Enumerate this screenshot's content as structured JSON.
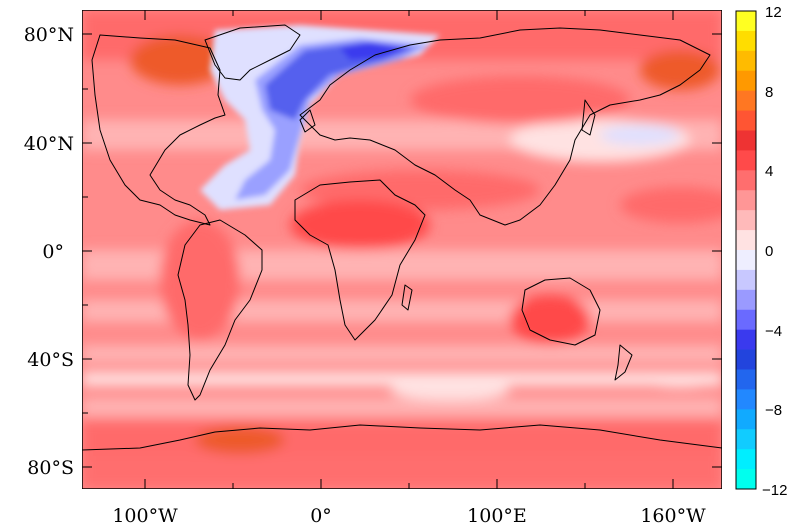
{
  "map": {
    "lat_labels": [
      "80°N",
      "40°N",
      "0°",
      "40°S",
      "80°S"
    ],
    "lon_labels": [
      "100°W",
      "0°",
      "100°E",
      "160°W"
    ],
    "colorbar": {
      "labels": [
        "12",
        "8",
        "4",
        "0",
        "−4",
        "−8",
        "−12"
      ],
      "range": [
        -12,
        12
      ],
      "step": 1,
      "colors_high_to_low": [
        "#ffff22",
        "#ffdd00",
        "#ffbb00",
        "#ff9900",
        "#ff7722",
        "#ff5533",
        "#ee3333",
        "#ff4a4a",
        "#ff6e6e",
        "#ff9696",
        "#ffbaba",
        "#ffe2e2",
        "#eeeeff",
        "#c8c8ff",
        "#9a9aff",
        "#6a6aff",
        "#3a3aee",
        "#2244dd",
        "#2266ee",
        "#2288ff",
        "#11aaff",
        "#11ccff",
        "#00eeff",
        "#00ffee"
      ]
    },
    "field_colors": {
      "background": "#ff8b8b",
      "light_band": "#ffb3b3",
      "mid": "#ff6a6a",
      "strong": "#ff4a4a",
      "hot": "#ee5a2a",
      "cold_light": "#dfe0ff",
      "cold_mid": "#9aa0ff",
      "cold_strong": "#5560ee"
    },
    "coastline_color": "#000000"
  }
}
